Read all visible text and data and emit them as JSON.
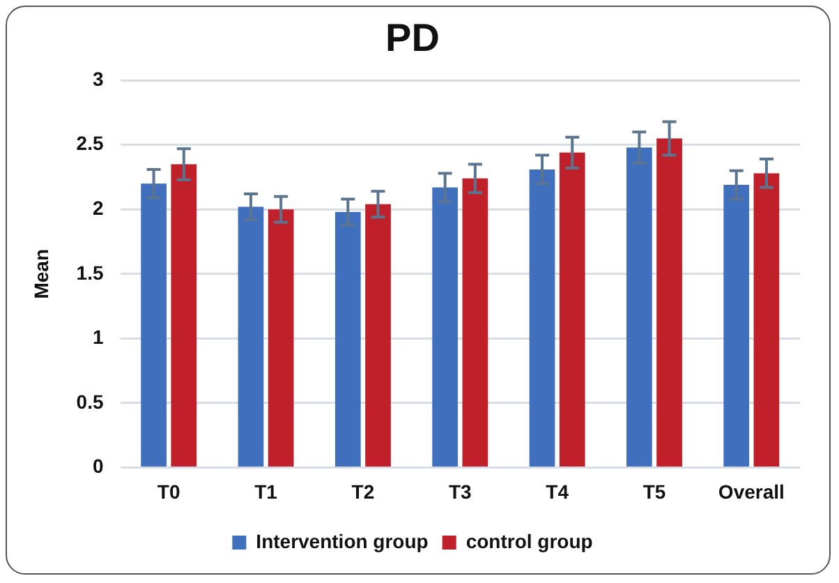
{
  "chart_data": {
    "type": "bar",
    "title": "PD",
    "ylabel": "Mean",
    "categories": [
      "T0",
      "T1",
      "T2",
      "T3",
      "T4",
      "T5",
      "Overall"
    ],
    "series": [
      {
        "name": "Intervention group",
        "color": "#3f6fbd",
        "values": [
          2.2,
          2.02,
          1.98,
          2.17,
          2.31,
          2.48,
          2.19
        ],
        "errors": [
          0.11,
          0.1,
          0.1,
          0.11,
          0.11,
          0.12,
          0.11
        ]
      },
      {
        "name": "control group",
        "color": "#c0202a",
        "values": [
          2.35,
          2.0,
          2.04,
          2.24,
          2.44,
          2.55,
          2.28
        ],
        "errors": [
          0.12,
          0.1,
          0.1,
          0.11,
          0.12,
          0.13,
          0.11
        ]
      }
    ],
    "ylim": [
      0,
      3
    ],
    "yticks": [
      0,
      0.5,
      1,
      1.5,
      2,
      2.5,
      3
    ],
    "grid": "y",
    "legend": "bottom"
  }
}
